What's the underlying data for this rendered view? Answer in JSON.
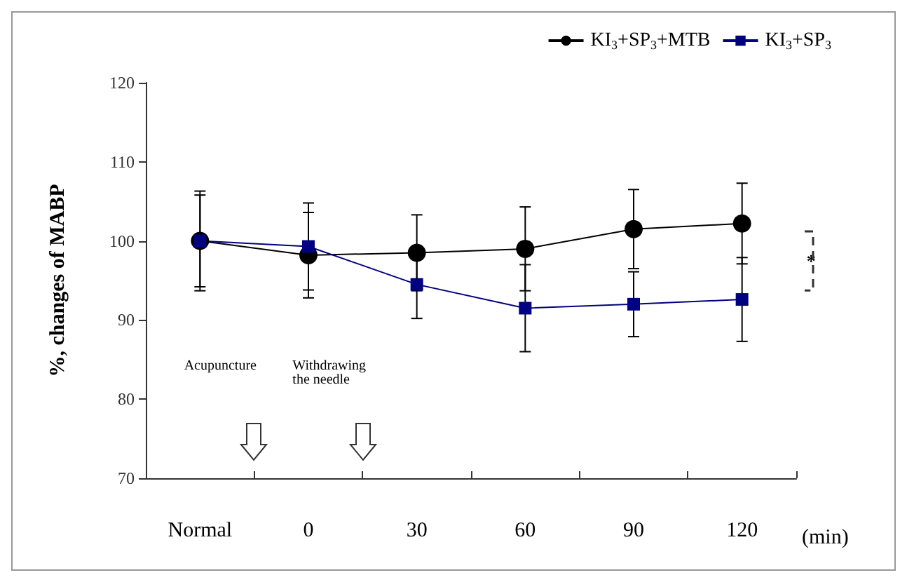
{
  "chart_data": {
    "type": "line",
    "ylabel": "%, changes of MABP",
    "xlabel": "(min)",
    "categories": [
      "Normal",
      "0",
      "30",
      "60",
      "90",
      "120"
    ],
    "ylim": [
      70,
      120
    ],
    "yticks": [
      70,
      80,
      90,
      100,
      110,
      120
    ],
    "grid": false,
    "legend": "top right",
    "series": [
      {
        "name": "KI$_{3}$+SP$_{3}$+MTB",
        "color": "#000000",
        "marker": "circle",
        "values": [
          100,
          98.2,
          98.5,
          99,
          101.5,
          102.2
        ],
        "errors": [
          6.3,
          5.4,
          4.8,
          5.3,
          5,
          5.1
        ]
      },
      {
        "name": "KI$_{3}$+SP$_{3}$",
        "color": "#000080",
        "marker": "square",
        "values": [
          100,
          99.3,
          94.5,
          91.5,
          92,
          92.6
        ],
        "errors": [
          5.8,
          5.5,
          4.3,
          5.5,
          4.1,
          5.3
        ]
      }
    ],
    "annotations": [
      "Acupuncture",
      "Withdrawing\nthe needle",
      "*"
    ]
  }
}
